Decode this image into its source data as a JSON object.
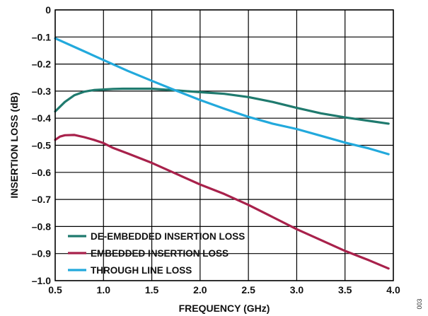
{
  "chart_data": {
    "type": "line",
    "xlabel": "FREQUENCY (GHz)",
    "ylabel": "INSERTION LOSS (dB)",
    "xlim": [
      0.5,
      4.0
    ],
    "ylim": [
      -1.0,
      0
    ],
    "xticks": [
      0.5,
      1.0,
      1.5,
      2.0,
      2.5,
      3.0,
      3.5,
      4.0
    ],
    "yticks": [
      0,
      -0.1,
      -0.2,
      -0.3,
      -0.4,
      -0.5,
      -0.6,
      -0.7,
      -0.8,
      -0.9,
      -1.0
    ],
    "xtick_labels": [
      "0.5",
      "1.0",
      "1.5",
      "2.0",
      "2.5",
      "3.0",
      "3.5",
      "4.0"
    ],
    "ytick_labels": [
      "0",
      "–0.1",
      "–0.2",
      "–0.3",
      "–0.4",
      "–0.5",
      "–0.6",
      "–0.7",
      "–0.8",
      "–0.9",
      "–1.0"
    ],
    "grid": true,
    "legend_position": "bottom-left",
    "series": [
      {
        "name": "DE-EMBEDDED INSERTION LOSS",
        "color": "#1f7a6e",
        "x": [
          0.5,
          0.6,
          0.7,
          0.8,
          0.9,
          1.0,
          1.1,
          1.2,
          1.3,
          1.5,
          1.75,
          2.0,
          2.25,
          2.5,
          2.75,
          3.0,
          3.25,
          3.5,
          3.75,
          3.95
        ],
        "y": [
          -0.375,
          -0.34,
          -0.315,
          -0.302,
          -0.296,
          -0.294,
          -0.292,
          -0.291,
          -0.291,
          -0.291,
          -0.297,
          -0.304,
          -0.31,
          -0.322,
          -0.34,
          -0.362,
          -0.382,
          -0.397,
          -0.41,
          -0.42
        ]
      },
      {
        "name": "EMBEDDED INSERTION LOSS",
        "color": "#a8214b",
        "x": [
          0.5,
          0.55,
          0.6,
          0.7,
          0.8,
          0.9,
          1.0,
          1.1,
          1.25,
          1.5,
          1.75,
          2.0,
          2.25,
          2.5,
          2.75,
          3.0,
          3.25,
          3.5,
          3.75,
          3.95
        ],
        "y": [
          -0.48,
          -0.468,
          -0.463,
          -0.462,
          -0.47,
          -0.48,
          -0.492,
          -0.51,
          -0.53,
          -0.565,
          -0.605,
          -0.645,
          -0.68,
          -0.72,
          -0.765,
          -0.81,
          -0.85,
          -0.89,
          -0.925,
          -0.955
        ]
      },
      {
        "name": "THROUGH LINE LOSS",
        "color": "#22a9dc",
        "x": [
          0.5,
          0.75,
          1.0,
          1.25,
          1.5,
          1.75,
          2.0,
          2.25,
          2.5,
          2.75,
          3.0,
          3.25,
          3.5,
          3.75,
          3.95
        ],
        "y": [
          -0.105,
          -0.145,
          -0.185,
          -0.225,
          -0.262,
          -0.298,
          -0.333,
          -0.365,
          -0.395,
          -0.42,
          -0.44,
          -0.465,
          -0.49,
          -0.512,
          -0.533
        ]
      }
    ]
  },
  "figure_id": "003"
}
